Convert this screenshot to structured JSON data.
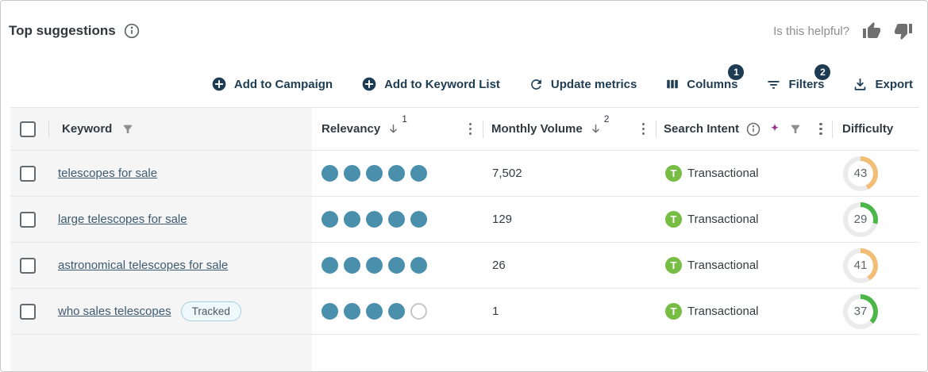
{
  "header": {
    "title": "Top suggestions",
    "helpful_label": "Is this helpful?"
  },
  "toolbar": {
    "add_to_campaign": "Add to Campaign",
    "add_to_keyword_list": "Add to Keyword List",
    "update_metrics": "Update metrics",
    "columns": {
      "label": "Columns",
      "badge": "1"
    },
    "filters": {
      "label": "Filters",
      "badge": "2"
    },
    "export_label": "Export"
  },
  "table": {
    "headers": {
      "keyword": "Keyword",
      "relevancy": {
        "label": "Relevancy",
        "sort_order": "1"
      },
      "monthly_volume": {
        "label": "Monthly Volume",
        "sort_order": "2"
      },
      "search_intent": {
        "label": "Search Intent"
      },
      "difficulty": "Difficulty"
    },
    "rows": [
      {
        "keyword": "telescopes for sale",
        "tracked": false,
        "tracked_label": "",
        "relevancy_filled": 5,
        "relevancy_total": 5,
        "monthly_volume": "7,502",
        "intent_letter": "T",
        "search_intent": "Transactional",
        "difficulty": 43,
        "difficulty_color": "#f2bd76"
      },
      {
        "keyword": "large telescopes for sale",
        "tracked": false,
        "tracked_label": "",
        "relevancy_filled": 5,
        "relevancy_total": 5,
        "monthly_volume": "129",
        "intent_letter": "T",
        "search_intent": "Transactional",
        "difficulty": 29,
        "difficulty_color": "#4cb748"
      },
      {
        "keyword": "astronomical telescopes for sale",
        "tracked": false,
        "tracked_label": "",
        "relevancy_filled": 5,
        "relevancy_total": 5,
        "monthly_volume": "26",
        "intent_letter": "T",
        "search_intent": "Transactional",
        "difficulty": 41,
        "difficulty_color": "#f2bd76"
      },
      {
        "keyword": "who sales telescopes",
        "tracked": true,
        "tracked_label": "Tracked",
        "relevancy_filled": 4,
        "relevancy_total": 5,
        "monthly_volume": "1",
        "intent_letter": "T",
        "search_intent": "Transactional",
        "difficulty": 37,
        "difficulty_color": "#4cb748"
      }
    ]
  },
  "colors": {
    "accent_navy": "#1d3c53",
    "dot_teal": "#4a8fac",
    "intent_green": "#77bc43",
    "sparkle_purple": "#9a2d8f",
    "ring_track": "#ebebeb"
  }
}
